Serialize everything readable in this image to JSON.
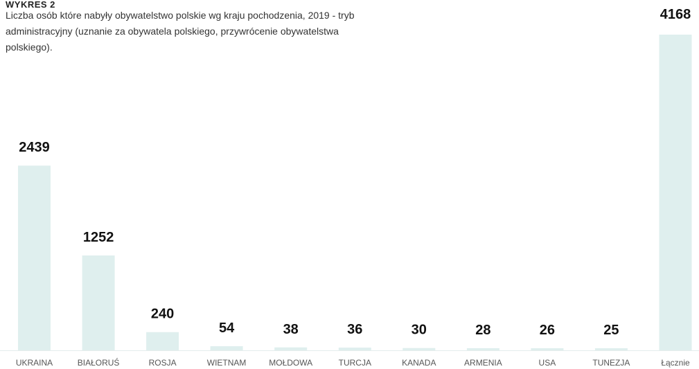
{
  "caption": {
    "title": "WYKRES 2",
    "description": "Liczba osób które nabyły obywatelstwo polskie wg kraju pochodzenia, 2019 - tryb administracyjny (uznanie za obywatela polskiego, przywrócenie obywatelstwa polskiego)."
  },
  "colors": {
    "bar": "#dfefee",
    "baseline": "#e4ecec",
    "value_text": "#111111",
    "category_text": "#555555"
  },
  "chart_data": {
    "type": "bar",
    "title": "",
    "xlabel": "",
    "ylabel": "",
    "categories": [
      "UKRAINA",
      "BIAŁORUŚ",
      "ROSJA",
      "WIETNAM",
      "MOŁDOWA",
      "TURCJA",
      "KANADA",
      "ARMENIA",
      "USA",
      "TUNEZJA",
      "Łącznie"
    ],
    "values": [
      2439,
      1252,
      240,
      54,
      38,
      36,
      30,
      28,
      26,
      25,
      4168
    ],
    "ylim": [
      0,
      4168
    ],
    "grid": false,
    "legend": "none"
  }
}
